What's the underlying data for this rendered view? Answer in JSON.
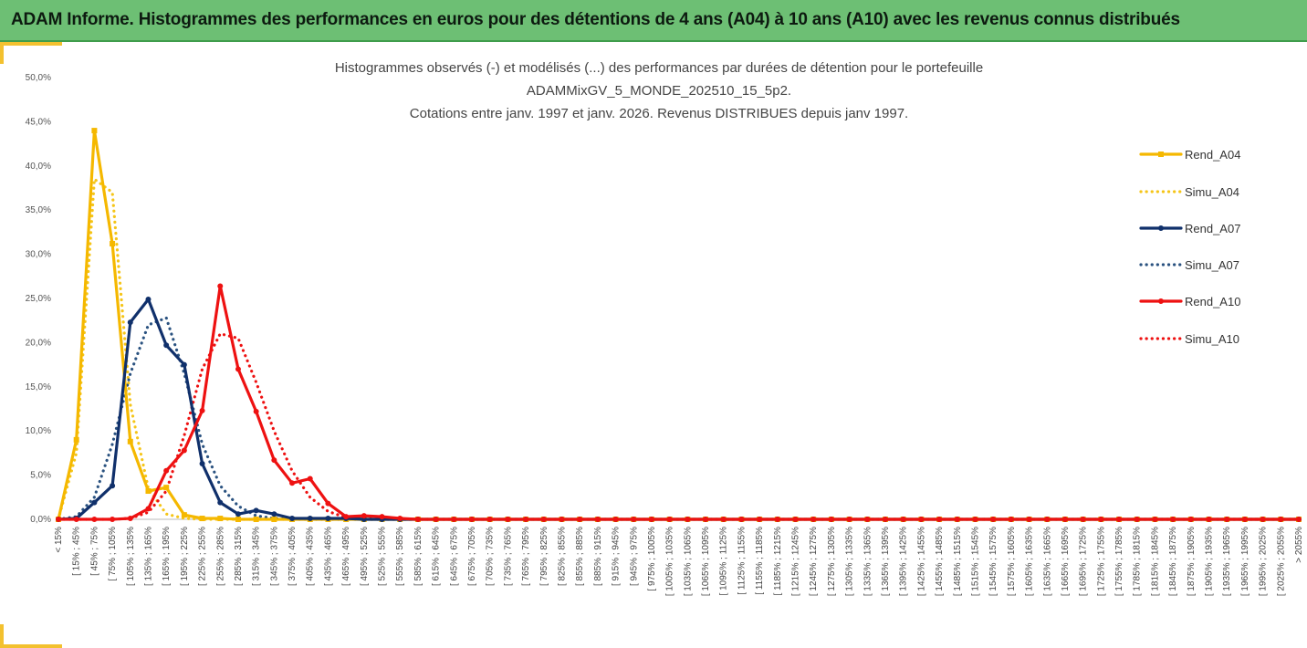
{
  "header": {
    "title": "ADAM Informe. Histogrammes des performances en euros pour des détentions de 4 ans (A04) à 10 ans (A10) avec les revenus connus distribués"
  },
  "chart_data": {
    "type": "line",
    "title": [
      "Histogrammes observés (-) et modélisés (...) des performances par durées de détention pour le portefeuille",
      "ADAMMixGV_5_MONDE_202510_15_5p2.",
      "Cotations entre janv. 1997 et janv. 2026. Revenus DISTRIBUES depuis janv 1997."
    ],
    "xlabel": "",
    "ylabel": "",
    "ylim": [
      0,
      50
    ],
    "yticks": [
      "0,0%",
      "5,0%",
      "10,0%",
      "15,0%",
      "20,0%",
      "25,0%",
      "30,0%",
      "35,0%",
      "40,0%",
      "45,0%",
      "50,0%"
    ],
    "grid": false,
    "legend_position": "right",
    "categories": [
      "< 15%",
      "[ 15% ; 45%",
      "[ 45% ; 75%",
      "[ 75% ; 105%",
      "[ 105% ; 135%",
      "[ 135% ; 165%",
      "[ 165% ; 195%",
      "[ 195% ; 225%",
      "[ 225% ; 255%",
      "[ 255% ; 285%",
      "[ 285% ; 315%",
      "[ 315% ; 345%",
      "[ 345% ; 375%",
      "[ 375% ; 405%",
      "[ 405% ; 435%",
      "[ 435% ; 465%",
      "[ 465% ; 495%",
      "[ 495% ; 525%",
      "[ 525% ; 555%",
      "[ 555% ; 585%",
      "[ 585% ; 615%",
      "[ 615% ; 645%",
      "[ 645% ; 675%",
      "[ 675% ; 705%",
      "[ 705% ; 735%",
      "[ 735% ; 765%",
      "[ 765% ; 795%",
      "[ 795% ; 825%",
      "[ 825% ; 855%",
      "[ 855% ; 885%",
      "[ 885% ; 915%",
      "[ 915% ; 945%",
      "[ 945% ; 975%",
      "[ 975% ; 1005%",
      "[ 1005% ; 1035%",
      "[ 1035% ; 1065%",
      "[ 1065% ; 1095%",
      "[ 1095% ; 1125%",
      "[ 1125% ; 1155%",
      "[ 1155% ; 1185%",
      "[ 1185% ; 1215%",
      "[ 1215% ; 1245%",
      "[ 1245% ; 1275%",
      "[ 1275% ; 1305%",
      "[ 1305% ; 1335%",
      "[ 1335% ; 1365%",
      "[ 1365% ; 1395%",
      "[ 1395% ; 1425%",
      "[ 1425% ; 1455%",
      "[ 1455% ; 1485%",
      "[ 1485% ; 1515%",
      "[ 1515% ; 1545%",
      "[ 1545% ; 1575%",
      "[ 1575% ; 1605%",
      "[ 1605% ; 1635%",
      "[ 1635% ; 1665%",
      "[ 1665% ; 1695%",
      "[ 1695% ; 1725%",
      "[ 1725% ; 1755%",
      "[ 1755% ; 1785%",
      "[ 1785% ; 1815%",
      "[ 1815% ; 1845%",
      "[ 1845% ; 1875%",
      "[ 1875% ; 1905%",
      "[ 1905% ; 1935%",
      "[ 1935% ; 1965%",
      "[ 1965% ; 1995%",
      "[ 1995% ; 2025%",
      "[ 2025% ; 2055%",
      "> 2055%"
    ],
    "series": [
      {
        "name": "Rend_A04",
        "color": "#f5b800",
        "style": "solid",
        "marker": "square",
        "values": [
          0,
          9,
          44,
          31.2,
          8.8,
          3.2,
          3.6,
          0.5,
          0.1,
          0.1,
          0,
          0,
          0,
          0,
          0,
          0,
          0,
          0,
          0,
          0,
          0,
          0,
          0,
          0,
          0,
          0,
          0,
          0,
          0,
          0,
          0,
          0,
          0,
          0,
          0,
          0,
          0,
          0,
          0,
          0,
          0,
          0,
          0,
          0,
          0,
          0,
          0,
          0,
          0,
          0,
          0,
          0,
          0,
          0,
          0,
          0,
          0,
          0,
          0,
          0,
          0,
          0,
          0,
          0,
          0,
          0,
          0,
          0,
          0,
          0
        ]
      },
      {
        "name": "Simu_A04",
        "color": "#f5c518",
        "style": "dotted",
        "values": [
          0,
          7.5,
          38.5,
          37,
          13,
          3.5,
          0.6,
          0.1,
          0,
          0,
          0,
          0,
          0,
          0,
          0,
          0,
          0,
          0,
          0,
          0,
          0,
          0,
          0,
          0,
          0,
          0,
          0,
          0,
          0,
          0,
          0,
          0,
          0,
          0,
          0,
          0,
          0,
          0,
          0,
          0,
          0,
          0,
          0,
          0,
          0,
          0,
          0,
          0,
          0,
          0,
          0,
          0,
          0,
          0,
          0,
          0,
          0,
          0,
          0,
          0,
          0,
          0,
          0,
          0,
          0,
          0,
          0,
          0,
          0,
          0
        ]
      },
      {
        "name": "Rend_A07",
        "color": "#10306b",
        "style": "solid",
        "marker": "circle",
        "values": [
          0,
          0.1,
          1.9,
          3.8,
          22.3,
          24.9,
          19.7,
          17.5,
          6.3,
          1.9,
          0.6,
          1,
          0.6,
          0.1,
          0.1,
          0.1,
          0.1,
          0,
          0,
          0,
          0,
          0,
          0,
          0,
          0,
          0,
          0,
          0,
          0,
          0,
          0,
          0,
          0,
          0,
          0,
          0,
          0,
          0,
          0,
          0,
          0,
          0,
          0,
          0,
          0,
          0,
          0,
          0,
          0,
          0,
          0,
          0,
          0,
          0,
          0,
          0,
          0,
          0,
          0,
          0,
          0,
          0,
          0,
          0,
          0,
          0,
          0,
          0,
          0,
          0
        ]
      },
      {
        "name": "Simu_A07",
        "color": "#2a5280",
        "style": "dotted",
        "values": [
          0,
          0.3,
          2.5,
          8.5,
          16.5,
          22,
          22.8,
          16.5,
          8.5,
          3.8,
          1.5,
          0.4,
          0.1,
          0,
          0,
          0,
          0,
          0,
          0,
          0,
          0,
          0,
          0,
          0,
          0,
          0,
          0,
          0,
          0,
          0,
          0,
          0,
          0,
          0,
          0,
          0,
          0,
          0,
          0,
          0,
          0,
          0,
          0,
          0,
          0,
          0,
          0,
          0,
          0,
          0,
          0,
          0,
          0,
          0,
          0,
          0,
          0,
          0,
          0,
          0,
          0,
          0,
          0,
          0,
          0,
          0,
          0,
          0,
          0,
          0
        ]
      },
      {
        "name": "Rend_A10",
        "color": "#ee1111",
        "style": "solid",
        "marker": "circle",
        "values": [
          0,
          0,
          0,
          0,
          0.1,
          1.2,
          5.5,
          7.8,
          12.3,
          26.4,
          17,
          12.2,
          6.7,
          4.1,
          4.6,
          1.8,
          0.3,
          0.4,
          0.3,
          0.1,
          0,
          0,
          0,
          0,
          0,
          0,
          0,
          0,
          0,
          0,
          0,
          0,
          0,
          0,
          0,
          0,
          0,
          0,
          0,
          0,
          0,
          0,
          0,
          0,
          0,
          0,
          0,
          0,
          0,
          0,
          0,
          0,
          0,
          0,
          0,
          0,
          0,
          0,
          0,
          0,
          0,
          0,
          0,
          0,
          0,
          0,
          0,
          0,
          0,
          0
        ]
      },
      {
        "name": "Simu_A10",
        "color": "#ee1111",
        "style": "dotted",
        "values": [
          0,
          0,
          0,
          0,
          0.1,
          0.8,
          3.2,
          9.5,
          17,
          21,
          20.5,
          15.5,
          10,
          5.5,
          2.5,
          0.9,
          0.2,
          0.1,
          0,
          0,
          0,
          0,
          0,
          0,
          0,
          0,
          0,
          0,
          0,
          0,
          0,
          0,
          0,
          0,
          0,
          0,
          0,
          0,
          0,
          0,
          0,
          0,
          0,
          0,
          0,
          0,
          0,
          0,
          0,
          0,
          0,
          0,
          0,
          0,
          0,
          0,
          0,
          0,
          0,
          0,
          0,
          0,
          0,
          0,
          0,
          0,
          0,
          0,
          0,
          0
        ]
      }
    ]
  }
}
